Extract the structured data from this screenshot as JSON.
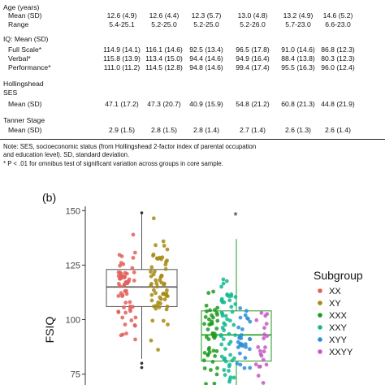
{
  "table": {
    "columns": [
      "XX",
      "XY",
      "XXX",
      "XXY",
      "XYY",
      "XXYY"
    ],
    "rows": [
      {
        "label": "Age (years)",
        "values": [
          "",
          "",
          "",
          "",
          "",
          ""
        ]
      },
      {
        "label": "Mean (SD)",
        "values": [
          "12.6 (4.9)",
          "12.6 (4.4)",
          "12.3 (5.7)",
          "13.0 (4.8)",
          "13.2 (4.9)",
          "14.6 (5.2)"
        ]
      },
      {
        "label": "Range",
        "values": [
          "5.4-25.1",
          "5.2-25.0",
          "5.2-25.0",
          "5.2-26.0",
          "5.7-23.0",
          "6.6-23.0"
        ]
      },
      {
        "label": "IQ: Mean (SD)",
        "values": [
          "",
          "",
          "",
          "",
          "",
          ""
        ]
      },
      {
        "label": "Full Scale*",
        "values": [
          "114.9 (14.1)",
          "116.1 (14.6)",
          "92.5 (13.4)",
          "96.5 (17.8)",
          "91.0 (14.6)",
          "86.8 (12.3)"
        ]
      },
      {
        "label": "Verbal*",
        "values": [
          "115.8 (13.9)",
          "113.4 (15.0)",
          "94.4 (14.6)",
          "94.9 (16.4)",
          "88.4 (13.8)",
          "80.3 (12.3)"
        ]
      },
      {
        "label": "Performance*",
        "values": [
          "111.0 (11.2)",
          "114.5 (12.8)",
          "94.8 (14.6)",
          "99.4 (17.4)",
          "95.5 (16.3)",
          "96.0 (12.4)"
        ]
      },
      {
        "label": "Hollingshead",
        "values": [
          "",
          "",
          "",
          "",
          "",
          ""
        ]
      },
      {
        "label": "SES",
        "values": [
          "",
          "",
          "",
          "",
          "",
          ""
        ]
      },
      {
        "label": "Mean (SD)",
        "values": [
          "47.1 (17.2)",
          "47.3 (20.7)",
          "40.9 (15.9)",
          "54.8 (21.2)",
          "60.8 (21.3)",
          "44.8 (21.9)"
        ]
      },
      {
        "label": "Tanner Stage",
        "values": [
          "",
          "",
          "",
          "",
          "",
          ""
        ]
      },
      {
        "label": "Mean (SD)",
        "values": [
          "2.9 (1.5)",
          "2.8 (1.5)",
          "2.8 (1.4)",
          "2.7 (1.4)",
          "2.6 (1.3)",
          "2.6 (1.4)"
        ]
      }
    ],
    "note_line1": "Note: SES, socioeconomic status (from Hollingshead 2-factor index of parental occupation",
    "note_line2": "and education level). SD, standard deviation.",
    "note_line3": "* P < .01 for omnibus test of significant variation across groups in core sample."
  },
  "figure": {
    "panel_label": "(b)",
    "significance_mark": "*",
    "legend_title": "Subgroup",
    "colors": {
      "XX": "#e0605a",
      "XY": "#a68a12",
      "XXX": "#1f9a1f",
      "XXY": "#12b88f",
      "XYY": "#2a8ed6",
      "XXYY": "#c55ac2"
    }
  },
  "chart_data": {
    "type": "scatter",
    "title": "",
    "xlabel": "",
    "ylabel": "FSIQ",
    "ylim": [
      70,
      152
    ],
    "yticks": [
      "75",
      "100",
      "125",
      "150"
    ],
    "legend": {
      "title": "Subgroup",
      "placement": "right"
    },
    "groups": [
      {
        "name": "XX",
        "box_group": "XX/XY"
      },
      {
        "name": "XY",
        "box_group": "XX/XY"
      },
      {
        "name": "XXX",
        "box_group": "XXX/XXY/XYY/XXYY"
      },
      {
        "name": "XXY",
        "box_group": "XXX/XXY/XYY/XXYY"
      },
      {
        "name": "XYY",
        "box_group": "XXX/XXY/XYY/XXYY"
      },
      {
        "name": "XXYY",
        "box_group": "XXX/XXY/XYY/XXYY"
      }
    ],
    "boxes": [
      {
        "label": "XX/XY",
        "q1": 106,
        "median": 115,
        "q3": 123,
        "whisker_low": 82,
        "whisker_high": 149,
        "outliers": [
          149,
          80,
          78
        ],
        "color": "#555555"
      },
      {
        "label": "XXX/XXY/XYY/XXYY",
        "q1": 81,
        "median": 93,
        "q3": 104,
        "whisker_low": 70,
        "whisker_high": 137,
        "outliers": [],
        "color": "#1f9a1f"
      }
    ],
    "grid": false
  }
}
